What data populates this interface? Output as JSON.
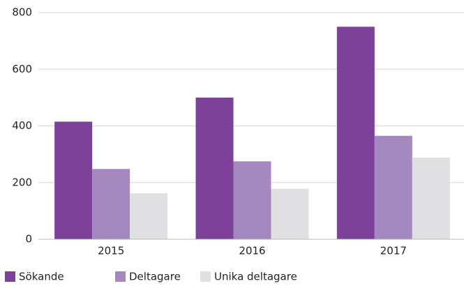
{
  "chart_data": {
    "type": "bar",
    "categories": [
      "2015",
      "2016",
      "2017"
    ],
    "series": [
      {
        "name": "Sökande",
        "color": "#7d4199",
        "values": [
          415,
          500,
          750
        ]
      },
      {
        "name": "Deltagare",
        "color": "#a688c0",
        "values": [
          248,
          275,
          365
        ]
      },
      {
        "name": "Unika deltagare",
        "color": "#e0e0e2",
        "values": [
          162,
          178,
          288
        ]
      }
    ],
    "ylim": [
      0,
      800
    ],
    "yticks": [
      0,
      200,
      400,
      600,
      800
    ],
    "grid": true
  }
}
